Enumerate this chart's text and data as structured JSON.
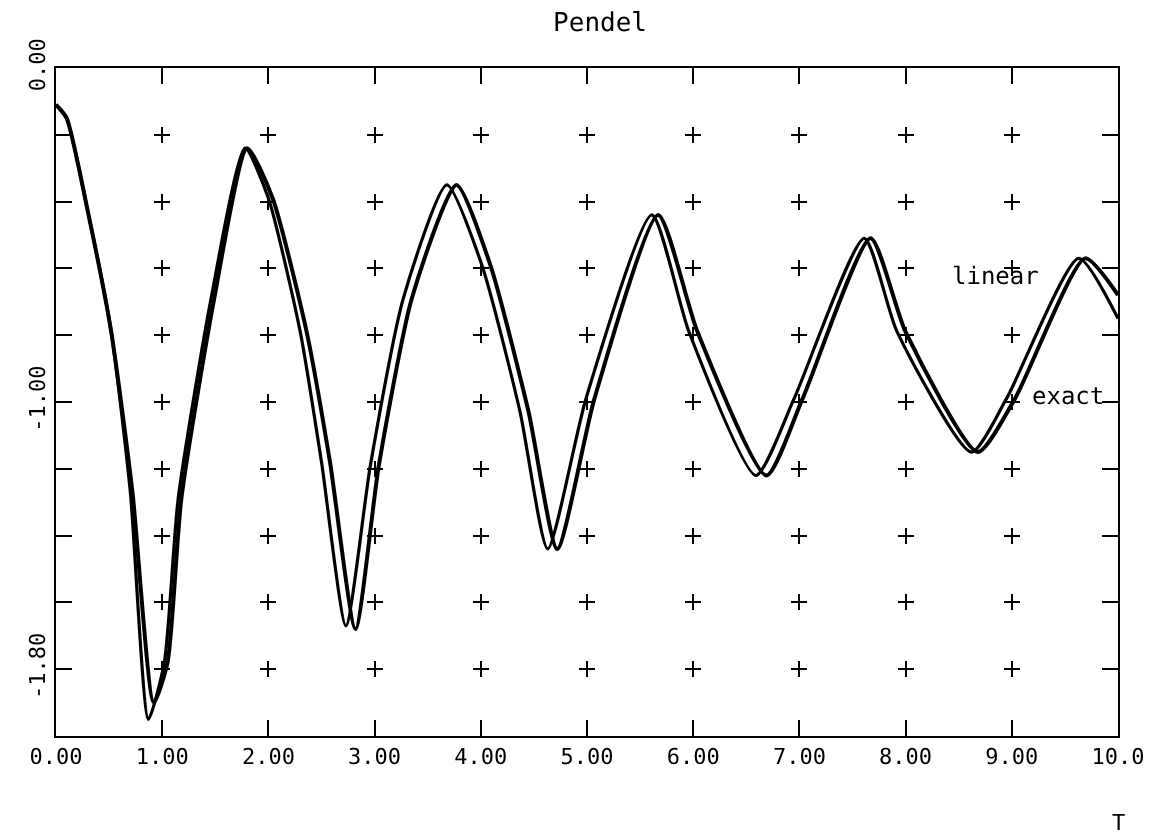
{
  "chart_data": {
    "type": "line",
    "title": "Pendel",
    "xlabel": "T",
    "xlim": [
      0,
      10
    ],
    "xticks": [
      {
        "value": 0,
        "label": "0.00"
      },
      {
        "value": 1,
        "label": "1.00"
      },
      {
        "value": 2,
        "label": "2.00"
      },
      {
        "value": 3,
        "label": "3.00"
      },
      {
        "value": 4,
        "label": "4.00"
      },
      {
        "value": 5,
        "label": "5.00"
      },
      {
        "value": 6,
        "label": "6.00"
      },
      {
        "value": 7,
        "label": "7.00"
      },
      {
        "value": 8,
        "label": "8.00"
      },
      {
        "value": 9,
        "label": "9.00"
      },
      {
        "value": 10,
        "label": "10.0"
      }
    ],
    "ylim": [
      -2,
      0
    ],
    "yticks": [
      {
        "value": 0,
        "label": "0.00"
      },
      {
        "value": -0.2,
        "label": null
      },
      {
        "value": -0.4,
        "label": null
      },
      {
        "value": -0.6,
        "label": null
      },
      {
        "value": -0.8,
        "label": null
      },
      {
        "value": -1,
        "label": "-1.00"
      },
      {
        "value": -1.2,
        "label": null
      },
      {
        "value": -1.4,
        "label": null
      },
      {
        "value": -1.6,
        "label": null
      },
      {
        "value": -1.8,
        "label": "-1.80"
      },
      {
        "value": -2,
        "label": null
      }
    ],
    "grid": true,
    "legend": "right",
    "marker": "none",
    "line_style": "solid",
    "series": [
      {
        "name": "linear",
        "color": "#000000",
        "x": [
          0,
          0.1,
          0.3,
          0.52,
          0.7,
          0.87,
          1.02,
          1.15,
          1.46,
          1.78,
          2.0,
          2.3,
          2.5,
          2.73,
          2.96,
          3.27,
          3.68,
          4.01,
          4.37,
          4.63,
          4.99,
          5.61,
          5.96,
          6.59,
          6.95,
          7.61,
          7.92,
          8.62,
          8.95,
          9.63,
          10
        ],
        "values": [
          -0.11,
          -0.15,
          -0.43,
          -0.79,
          -1.27,
          -1.95,
          -1.78,
          -1.29,
          -0.69,
          -0.24,
          -0.39,
          -0.79,
          -1.18,
          -1.67,
          -1.19,
          -0.69,
          -0.35,
          -0.59,
          -1.03,
          -1.44,
          -0.99,
          -0.44,
          -0.79,
          -1.22,
          -0.99,
          -0.51,
          -0.79,
          -1.15,
          -0.99,
          -0.57,
          -0.75
        ]
      },
      {
        "name": "exact",
        "color": "#000000",
        "x": [
          0,
          0.1,
          0.3,
          0.52,
          0.72,
          0.92,
          1.05,
          1.18,
          1.49,
          1.8,
          2.04,
          2.36,
          2.58,
          2.82,
          3.04,
          3.35,
          3.77,
          4.09,
          4.45,
          4.72,
          5.07,
          5.67,
          6.04,
          6.69,
          7.03,
          7.67,
          8.0,
          8.68,
          9.03,
          9.69,
          10
        ],
        "values": [
          -0.11,
          -0.15,
          -0.43,
          -0.79,
          -1.27,
          -1.9,
          -1.78,
          -1.29,
          -0.69,
          -0.24,
          -0.39,
          -0.79,
          -1.18,
          -1.68,
          -1.19,
          -0.69,
          -0.35,
          -0.59,
          -1.03,
          -1.44,
          -0.99,
          -0.44,
          -0.79,
          -1.22,
          -0.99,
          -0.51,
          -0.79,
          -1.15,
          -0.99,
          -0.57,
          -0.68
        ]
      }
    ]
  }
}
